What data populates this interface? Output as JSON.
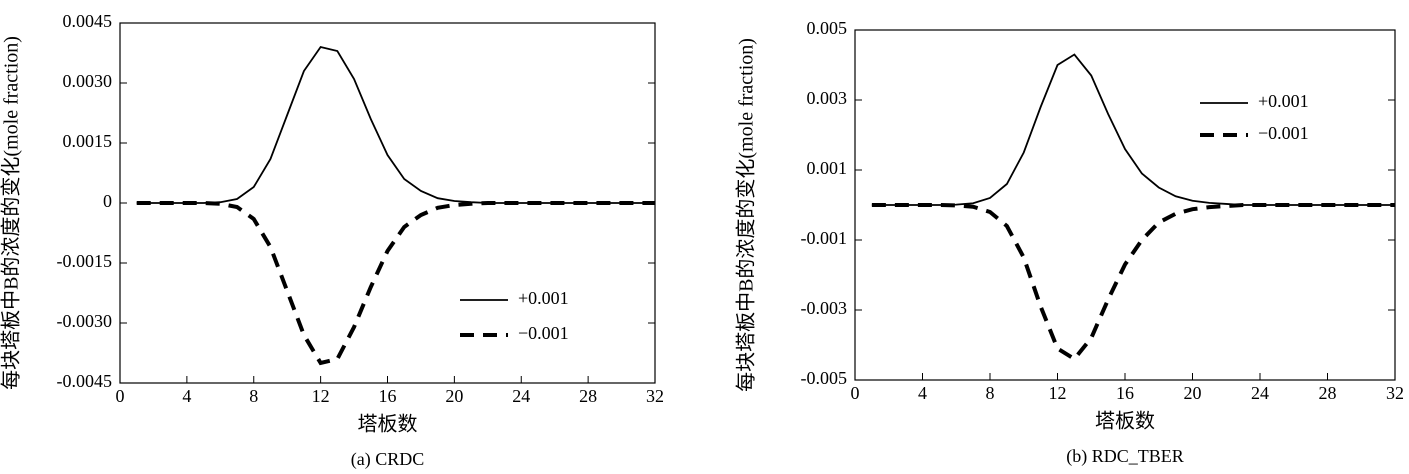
{
  "chart_data": [
    {
      "type": "line",
      "caption": "(a) CRDC",
      "xlabel": "塔板数",
      "ylabel": "每块塔板中B的浓度的变化(mole fraction)",
      "x": [
        1,
        2,
        3,
        4,
        5,
        6,
        7,
        8,
        9,
        10,
        11,
        12,
        13,
        14,
        15,
        16,
        17,
        18,
        19,
        20,
        21,
        22,
        23,
        24,
        25,
        26,
        27,
        28,
        29,
        30,
        31,
        32
      ],
      "series": [
        {
          "name": "+0.001",
          "color": "#000000",
          "linestyle": "solid",
          "values": [
            0,
            0,
            0,
            0,
            0,
            2e-05,
            0.0001,
            0.0004,
            0.0011,
            0.0022,
            0.0033,
            0.0039,
            0.0038,
            0.0031,
            0.0021,
            0.0012,
            0.0006,
            0.0003,
            0.00012,
            5e-05,
            2e-05,
            0,
            0,
            0,
            0,
            0,
            0,
            0,
            0,
            0,
            0,
            0
          ]
        },
        {
          "name": "−0.001",
          "color": "#000000",
          "linestyle": "dashed",
          "values": [
            0,
            0,
            0,
            0,
            0,
            -2e-05,
            -0.0001,
            -0.0004,
            -0.0011,
            -0.0022,
            -0.0033,
            -0.004,
            -0.0039,
            -0.0031,
            -0.0021,
            -0.0012,
            -0.0006,
            -0.0003,
            -0.00012,
            -5e-05,
            -2e-05,
            0,
            0,
            0,
            0,
            0,
            0,
            0,
            0,
            0,
            0,
            0
          ]
        }
      ],
      "xlim": [
        0,
        32
      ],
      "xticks": [
        0,
        4,
        8,
        12,
        16,
        20,
        24,
        28,
        32
      ],
      "ylim": [
        -0.0045,
        0.0045
      ],
      "yticks": [
        0.0045,
        {
          "value": 0.003,
          "label": "0.0030"
        },
        0.0015,
        0,
        -0.0015,
        {
          "value": -0.003,
          "label": "-0.0030"
        },
        -0.0045
      ],
      "legend": "lower right"
    },
    {
      "type": "line",
      "caption": "(b) RDC_TBER",
      "xlabel": "塔板数",
      "ylabel": "每块塔板中B的浓度的变化(mole fraction)",
      "x": [
        1,
        2,
        3,
        4,
        5,
        6,
        7,
        8,
        9,
        10,
        11,
        12,
        13,
        14,
        15,
        16,
        17,
        18,
        19,
        20,
        21,
        22,
        23,
        24,
        25,
        26,
        27,
        28,
        29,
        30,
        31,
        32
      ],
      "series": [
        {
          "name": "+0.001",
          "color": "#000000",
          "linestyle": "solid",
          "values": [
            0,
            0,
            0,
            0,
            0,
            1e-05,
            5e-05,
            0.0002,
            0.0006,
            0.0015,
            0.0028,
            0.004,
            0.0043,
            0.0037,
            0.0026,
            0.0016,
            0.0009,
            0.0005,
            0.00025,
            0.00012,
            6e-05,
            3e-05,
            0,
            0,
            0,
            0,
            0,
            0,
            0,
            0,
            0,
            0
          ]
        },
        {
          "name": "−0.001",
          "color": "#000000",
          "linestyle": "dashed",
          "values": [
            0,
            0,
            0,
            0,
            0,
            -1e-05,
            -5e-05,
            -0.0002,
            -0.0006,
            -0.0015,
            -0.0029,
            -0.0041,
            -0.0044,
            -0.0038,
            -0.0027,
            -0.0017,
            -0.001,
            -0.0005,
            -0.00025,
            -0.00012,
            -6e-05,
            -3e-05,
            0,
            0,
            0,
            0,
            0,
            0,
            0,
            0,
            0,
            0
          ]
        }
      ],
      "xlim": [
        0,
        32
      ],
      "xticks": [
        0,
        4,
        8,
        12,
        16,
        20,
        24,
        28,
        32
      ],
      "ylim": [
        -0.005,
        0.005
      ],
      "yticks": [
        0.005,
        0.003,
        0.001,
        -0.001,
        -0.003,
        -0.005
      ],
      "legend": "upper right"
    }
  ]
}
